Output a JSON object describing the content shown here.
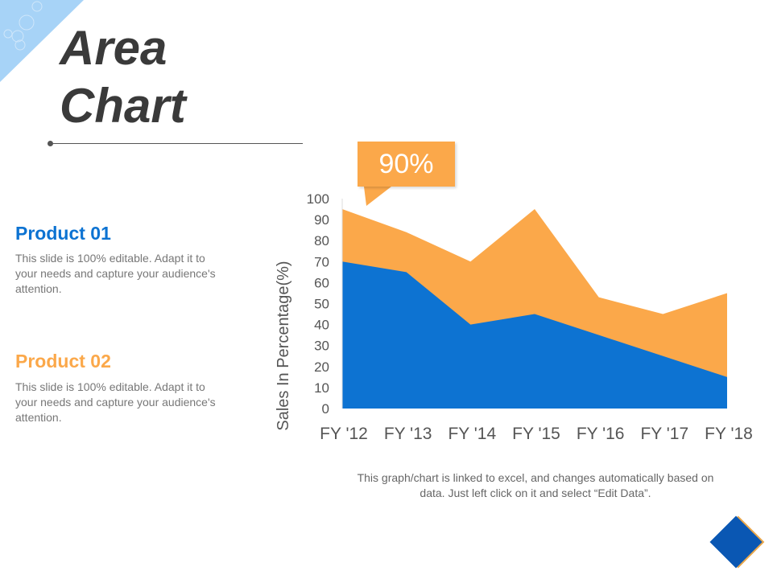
{
  "title_line1": "Area",
  "title_line2": "Chart",
  "callout": "90%",
  "products": [
    {
      "heading": "Product 01",
      "text": "This slide is 100% editable. Adapt it to your needs and capture your audience's attention.",
      "color": "#0d73d2"
    },
    {
      "heading": "Product 02",
      "text": "This slide is 100% editable. Adapt it to your needs and capture your audience's attention.",
      "color": "#fba84a"
    }
  ],
  "note": "This graph/chart is linked to excel, and changes automatically based on data. Just left click on it and select “Edit Data”.",
  "chart_data": {
    "type": "area",
    "categories": [
      "FY '12",
      "FY '13",
      "FY '14",
      "FY '15",
      "FY '16",
      "FY '17",
      "FY '18"
    ],
    "series": [
      {
        "values": [
          95,
          84,
          70,
          95,
          53,
          45,
          55
        ],
        "color": "#fba84a"
      },
      {
        "values": [
          70,
          65,
          40,
          45,
          35,
          25,
          15
        ],
        "color": "#0d73d2"
      }
    ],
    "ylabel": "Sales In Percentage(%)",
    "ylim": [
      0,
      100
    ],
    "yticks": [
      "0",
      "10",
      "20",
      "30",
      "40",
      "50",
      "60",
      "70",
      "80",
      "90",
      "100"
    ],
    "grid": false
  }
}
